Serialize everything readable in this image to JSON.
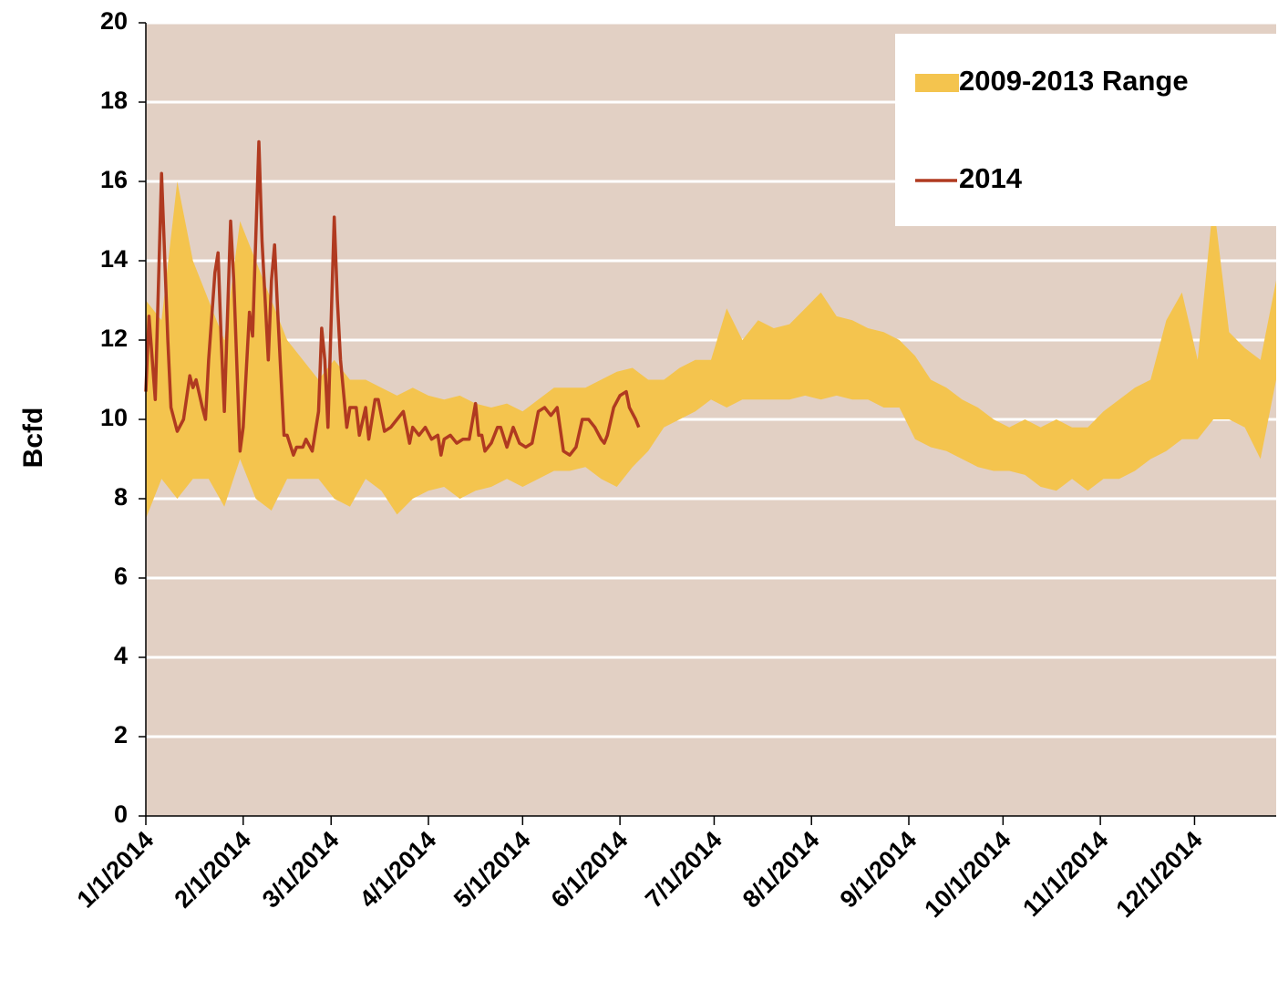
{
  "chart_data": {
    "type": "range-line",
    "ylabel": "Bcfd",
    "ylim": [
      0,
      20
    ],
    "yticks": [
      0,
      2,
      4,
      6,
      8,
      10,
      12,
      14,
      16,
      18,
      20
    ],
    "xlim": [
      "1/1/2014",
      "12/27/2014"
    ],
    "xticks": [
      "1/1/2014",
      "2/1/2014",
      "3/1/2014",
      "4/1/2014",
      "5/1/2014",
      "6/1/2014",
      "7/1/2014",
      "8/1/2014",
      "9/1/2014",
      "10/1/2014",
      "11/1/2014",
      "12/1/2014"
    ],
    "grid": true,
    "background": "#e2d0c4",
    "legend": "upper right",
    "series": [
      {
        "name": "2009-2013 Range",
        "color": "#f4c44e",
        "x": [
          "1/1/2014",
          "1/6/2014",
          "1/11/2014",
          "1/16/2014",
          "1/21/2014",
          "1/26/2014",
          "1/31/2014",
          "2/5/2014",
          "2/10/2014",
          "2/15/2014",
          "2/20/2014",
          "2/25/2014",
          "3/2/2014",
          "3/7/2014",
          "3/12/2014",
          "3/17/2014",
          "3/22/2014",
          "3/27/2014",
          "4/1/2014",
          "4/6/2014",
          "4/11/2014",
          "4/16/2014",
          "4/21/2014",
          "4/26/2014",
          "5/1/2014",
          "5/6/2014",
          "5/11/2014",
          "5/16/2014",
          "5/21/2014",
          "5/26/2014",
          "5/31/2014",
          "6/5/2014",
          "6/10/2014",
          "6/15/2014",
          "6/20/2014",
          "6/25/2014",
          "6/30/2014",
          "7/5/2014",
          "7/10/2014",
          "7/15/2014",
          "7/20/2014",
          "7/25/2014",
          "7/30/2014",
          "8/4/2014",
          "8/9/2014",
          "8/14/2014",
          "8/19/2014",
          "8/24/2014",
          "8/29/2014",
          "9/3/2014",
          "9/8/2014",
          "9/13/2014",
          "9/18/2014",
          "9/23/2014",
          "9/28/2014",
          "10/3/2014",
          "10/8/2014",
          "10/13/2014",
          "10/18/2014",
          "10/23/2014",
          "10/28/2014",
          "11/2/2014",
          "11/7/2014",
          "11/12/2014",
          "11/17/2014",
          "11/22/2014",
          "11/27/2014",
          "12/2/2014",
          "12/7/2014",
          "12/12/2014",
          "12/17/2014",
          "12/22/2014",
          "12/27/2014"
        ],
        "low": [
          7.5,
          8.5,
          8,
          8.5,
          8.5,
          7.8,
          9,
          8,
          7.7,
          8.5,
          8.5,
          8.5,
          8,
          7.8,
          8.5,
          8.2,
          7.6,
          8,
          8.2,
          8.3,
          8,
          8.2,
          8.3,
          8.5,
          8.3,
          8.5,
          8.7,
          8.7,
          8.8,
          8.5,
          8.3,
          8.8,
          9.2,
          9.8,
          10,
          10.2,
          10.5,
          10.3,
          10.5,
          10.5,
          10.5,
          10.5,
          10.6,
          10.5,
          10.6,
          10.5,
          10.5,
          10.3,
          10.3,
          9.5,
          9.3,
          9.2,
          9,
          8.8,
          8.7,
          8.7,
          8.6,
          8.3,
          8.2,
          8.5,
          8.2,
          8.5,
          8.5,
          8.7,
          9,
          9.2,
          9.5,
          9.5,
          10,
          10,
          9.8,
          9,
          11
        ],
        "high": [
          13,
          12.5,
          16,
          14,
          13,
          12,
          15,
          14,
          13,
          12,
          11.5,
          11,
          11.5,
          11,
          11,
          10.8,
          10.6,
          10.8,
          10.6,
          10.5,
          10.6,
          10.4,
          10.3,
          10.4,
          10.2,
          10.5,
          10.8,
          10.8,
          10.8,
          11,
          11.2,
          11.3,
          11,
          11,
          11.3,
          11.5,
          11.5,
          12.8,
          12,
          12.5,
          12.3,
          12.4,
          12.8,
          13.2,
          12.6,
          12.5,
          12.3,
          12.2,
          12,
          11.6,
          11,
          10.8,
          10.5,
          10.3,
          10,
          9.8,
          10,
          9.8,
          10,
          9.8,
          9.8,
          10.2,
          10.5,
          10.8,
          11,
          12.5,
          13.2,
          11.5,
          15.5,
          12.2,
          11.8,
          11.5,
          13.5
        ]
      },
      {
        "name": "2014",
        "color": "#b03a20",
        "x": [
          "1/1/2014",
          "1/2/2014",
          "1/4/2014",
          "1/6/2014",
          "1/8/2014",
          "1/9/2014",
          "1/11/2014",
          "1/13/2014",
          "1/15/2014",
          "1/16/2014",
          "1/17/2014",
          "1/19/2014",
          "1/20/2014",
          "1/21/2014",
          "1/23/2014",
          "1/24/2014",
          "1/25/2014",
          "1/26/2014",
          "1/28/2014",
          "1/29/2014",
          "1/31/2014",
          "2/1/2014",
          "2/3/2014",
          "2/4/2014",
          "2/6/2014",
          "2/7/2014",
          "2/9/2014",
          "2/10/2014",
          "2/11/2014",
          "2/12/2014",
          "2/14/2014",
          "2/15/2014",
          "2/17/2014",
          "2/18/2014",
          "2/20/2014",
          "2/21/2014",
          "2/23/2014",
          "2/25/2014",
          "2/26/2014",
          "2/27/2014",
          "2/28/2014",
          "3/2/2014",
          "3/3/2014",
          "3/4/2014",
          "3/6/2014",
          "3/7/2014",
          "3/9/2014",
          "3/10/2014",
          "3/12/2014",
          "3/13/2014",
          "3/15/2014",
          "3/16/2014",
          "3/18/2014",
          "3/20/2014",
          "3/22/2014",
          "3/24/2014",
          "3/26/2014",
          "3/27/2014",
          "3/29/2014",
          "3/31/2014",
          "4/2/2014",
          "4/4/2014",
          "4/5/2014",
          "4/6/2014",
          "4/8/2014",
          "4/10/2014",
          "4/12/2014",
          "4/14/2014",
          "4/16/2014",
          "4/17/2014",
          "4/18/2014",
          "4/19/2014",
          "4/21/2014",
          "4/23/2014",
          "4/24/2014",
          "4/26/2014",
          "4/28/2014",
          "4/30/2014",
          "5/2/2014",
          "5/4/2014",
          "5/6/2014",
          "5/8/2014",
          "5/10/2014",
          "5/12/2014",
          "5/14/2014",
          "5/16/2014",
          "5/18/2014",
          "5/20/2014",
          "5/22/2014",
          "5/24/2014",
          "5/26/2014",
          "5/27/2014",
          "5/28/2014",
          "5/30/2014",
          "6/1/2014",
          "6/3/2014",
          "6/4/2014",
          "6/6/2014",
          "6/7/2014"
        ],
        "values": [
          10.7,
          12.6,
          10.5,
          16.2,
          12,
          10.3,
          9.7,
          10,
          11.1,
          10.8,
          11,
          10.3,
          10,
          11.5,
          13.7,
          14.2,
          12,
          10.2,
          15,
          13.5,
          9.2,
          9.8,
          12.7,
          12.1,
          17,
          14.5,
          11.5,
          13.5,
          14.4,
          12.7,
          9.6,
          9.6,
          9.1,
          9.3,
          9.3,
          9.5,
          9.2,
          10.2,
          12.3,
          11.5,
          9.8,
          15.1,
          13,
          11.5,
          9.8,
          10.3,
          10.3,
          9.6,
          10.3,
          9.5,
          10.5,
          10.5,
          9.7,
          9.8,
          10,
          10.2,
          9.4,
          9.8,
          9.6,
          9.8,
          9.5,
          9.6,
          9.1,
          9.5,
          9.6,
          9.4,
          9.5,
          9.5,
          10.4,
          9.6,
          9.6,
          9.2,
          9.4,
          9.8,
          9.8,
          9.3,
          9.8,
          9.4,
          9.3,
          9.4,
          10.2,
          10.3,
          10.1,
          10.3,
          9.2,
          9.1,
          9.3,
          10,
          10,
          9.8,
          9.5,
          9.4,
          9.6,
          10.3,
          10.6,
          10.7,
          10.3,
          10,
          9.8
        ]
      }
    ]
  }
}
